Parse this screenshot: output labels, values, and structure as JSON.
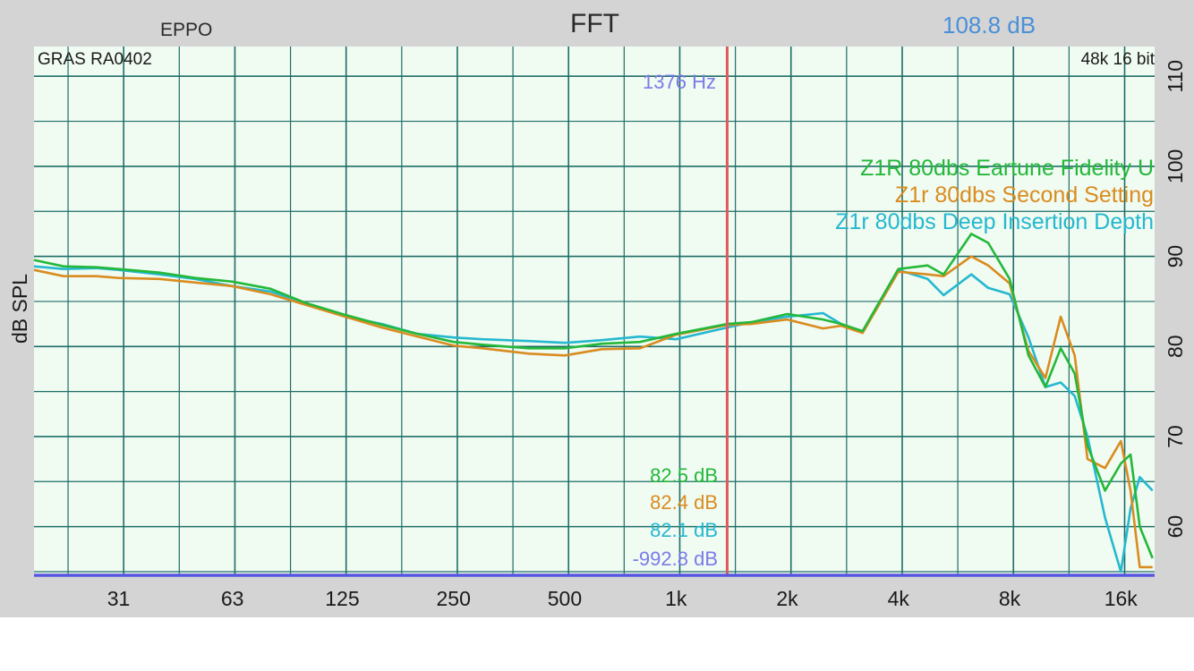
{
  "header": {
    "title": "FFT",
    "left_label": "EPPO",
    "peak_readout": "108.8 dB"
  },
  "plot_labels": {
    "rig": "GRAS RA0402",
    "format": "48k 16 bit",
    "cursor_freq": "1376 Hz",
    "readouts": [
      "82.5 dB",
      "82.4 dB",
      "82.1 dB",
      "-992.8 dB"
    ]
  },
  "colors": {
    "background": "#d4d4d4",
    "plot_bg": "#f0fbf2",
    "grid": "#1d6e67",
    "cursor": "#e05a5a",
    "bottom_line": "#5656e0",
    "freq_readout": "#7b7be8",
    "peak_text": "#4a90d9"
  },
  "chart_data": {
    "type": "line",
    "title": "FFT",
    "xlabel": "",
    "ylabel": "dB SPL",
    "x_scale": "log",
    "xlim": [
      18.3,
      19750
    ],
    "ylim": [
      54.5,
      113.3
    ],
    "x_ticks": [
      31,
      63,
      125,
      250,
      500,
      1000,
      2000,
      4000,
      8000,
      16000
    ],
    "x_tick_labels": [
      "31",
      "63",
      "125",
      "250",
      "500",
      "1k",
      "2k",
      "4k",
      "8k",
      "16k"
    ],
    "y_ticks": [
      60,
      70,
      80,
      90,
      100,
      110
    ],
    "y_tick_labels": [
      "60",
      "70",
      "80",
      "90",
      "100",
      "110"
    ],
    "grid": true,
    "legend_position": "top-right",
    "cursor_x": 1376,
    "series": [
      {
        "name": "Z1R 80dbs Eartune Fidelity U",
        "color": "#24b83a",
        "x": [
          18.3,
          22,
          27,
          31,
          40,
          50,
          63,
          80,
          100,
          125,
          160,
          200,
          250,
          300,
          400,
          500,
          630,
          800,
          1000,
          1376,
          1600,
          2000,
          2500,
          2800,
          3200,
          4000,
          4800,
          5300,
          6300,
          7000,
          8000,
          9000,
          10000,
          11000,
          12000,
          13000,
          14500,
          16000,
          17000,
          18000,
          19500
        ],
        "y": [
          89.6,
          88.9,
          88.8,
          88.6,
          88.2,
          87.6,
          87.2,
          86.4,
          84.8,
          83.6,
          82.4,
          81.4,
          80.5,
          80.2,
          79.8,
          79.8,
          80.3,
          80.5,
          81.4,
          82.5,
          82.7,
          83.6,
          83.0,
          82.5,
          81.7,
          88.6,
          89.0,
          88.0,
          92.5,
          91.5,
          87.5,
          79.0,
          75.5,
          79.8,
          77.0,
          69.0,
          64.0,
          67.0,
          68.0,
          60.0,
          56.5
        ]
      },
      {
        "name": "Z1r 80dbs Second Setting",
        "color": "#d98c1f",
        "x": [
          18.3,
          22,
          27,
          31,
          40,
          50,
          63,
          80,
          100,
          125,
          160,
          200,
          250,
          300,
          400,
          500,
          630,
          800,
          1000,
          1376,
          1600,
          2000,
          2500,
          2800,
          3200,
          4000,
          4800,
          5300,
          6300,
          7000,
          8000,
          9000,
          10000,
          11000,
          12000,
          13000,
          14500,
          16000,
          17000,
          18000,
          19500
        ],
        "y": [
          88.5,
          87.8,
          87.8,
          87.6,
          87.5,
          87.1,
          86.7,
          85.8,
          84.6,
          83.4,
          82.1,
          81.1,
          80.1,
          79.8,
          79.2,
          79.0,
          79.7,
          79.8,
          81.3,
          82.4,
          82.5,
          83.0,
          82.0,
          82.3,
          81.5,
          88.3,
          88.0,
          87.8,
          90.0,
          89.0,
          87.0,
          79.5,
          76.5,
          83.3,
          79.0,
          67.5,
          66.5,
          69.5,
          64.0,
          55.5,
          55.5
        ]
      },
      {
        "name": "Z1r 80dbs Deep Insertion Depth",
        "color": "#25b8cf",
        "x": [
          18.3,
          22,
          27,
          31,
          40,
          50,
          63,
          80,
          100,
          125,
          160,
          200,
          250,
          300,
          400,
          500,
          630,
          800,
          1000,
          1376,
          1600,
          2000,
          2500,
          2800,
          3200,
          4000,
          4800,
          5300,
          6300,
          7000,
          8000,
          9000,
          10000,
          11000,
          12000,
          13000,
          14500,
          16000,
          17000,
          18000,
          19500
        ],
        "y": [
          88.9,
          88.6,
          88.7,
          88.5,
          88.0,
          87.5,
          86.7,
          86.1,
          84.8,
          83.4,
          82.5,
          81.4,
          81.0,
          80.8,
          80.6,
          80.4,
          80.7,
          81.1,
          80.8,
          82.1,
          82.7,
          83.3,
          83.7,
          82.5,
          81.6,
          88.5,
          87.5,
          85.7,
          88.0,
          86.5,
          85.8,
          81.0,
          75.5,
          76.0,
          74.5,
          70.0,
          61.0,
          55.0,
          62.0,
          65.5,
          64.0
        ]
      },
      {
        "name": "",
        "color": "#5656e0",
        "x": [
          18.3,
          19750
        ],
        "y": [
          54.5,
          54.5
        ]
      }
    ]
  }
}
